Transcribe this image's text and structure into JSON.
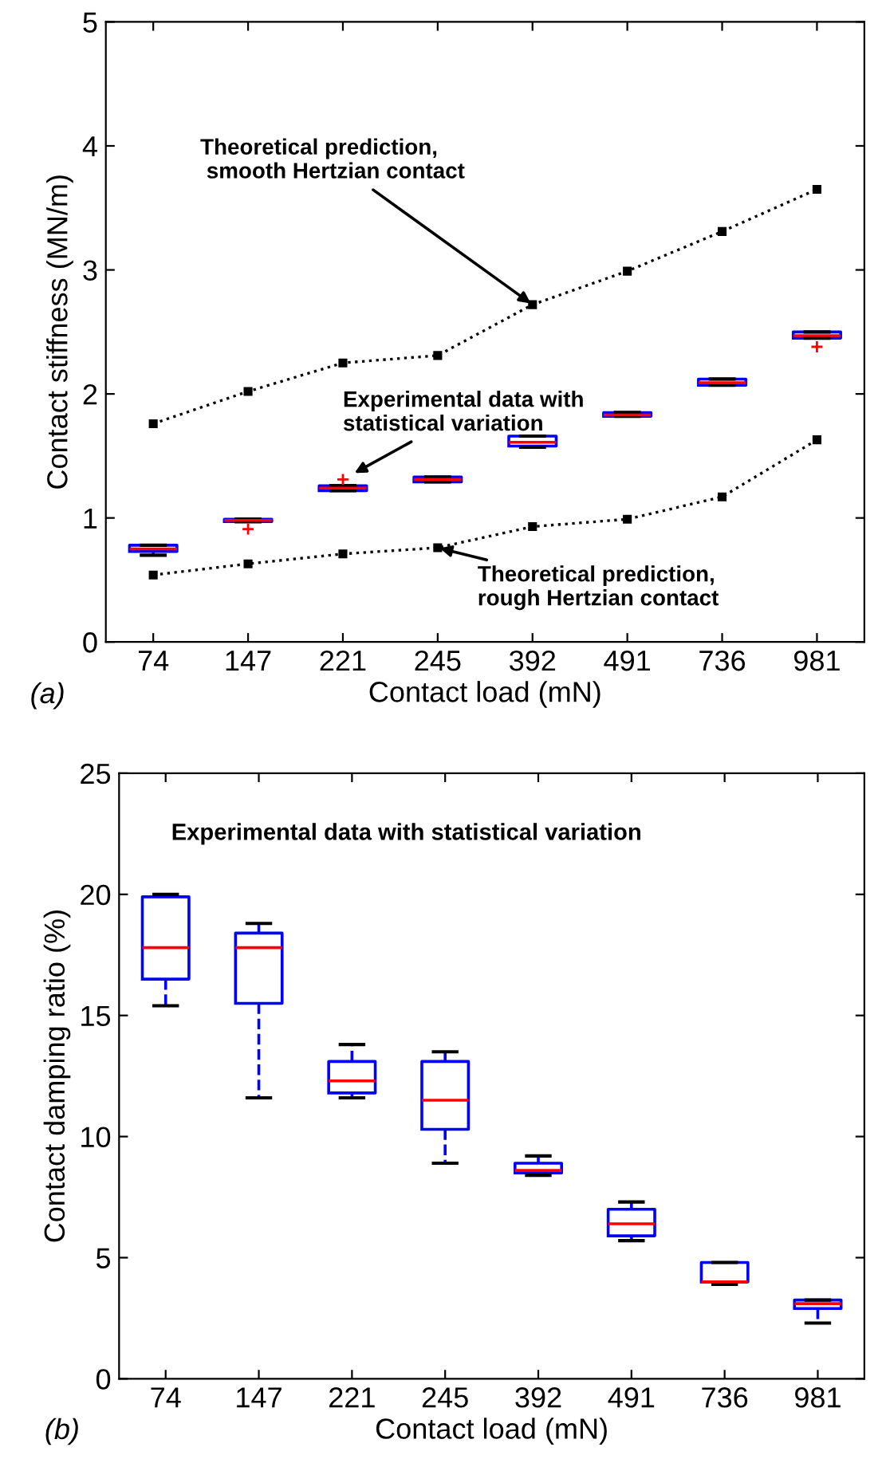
{
  "chart_data": [
    {
      "type": "line",
      "xlabel": "Contact load (mN)",
      "ylabel": "Contact stiffness (MN/m)",
      "categories": [
        "74",
        "147",
        "221",
        "245",
        "392",
        "491",
        "736",
        "981"
      ],
      "series": [
        {
          "color": "#000000",
          "values": [
            1.76,
            2.02,
            2.25,
            2.31,
            2.72,
            2.99,
            3.31,
            3.65
          ]
        },
        {
          "color": "#000000",
          "values": [
            0.54,
            0.63,
            0.71,
            0.76,
            0.93,
            0.99,
            1.17,
            1.63
          ]
        },
        {
          "type": "box",
          "color": "#0000ff",
          "boxes": [
            {
              "low": 0.7,
              "q1": 0.73,
              "median": 0.75,
              "q3": 0.78,
              "high": 0.78
            },
            {
              "low": 0.97,
              "q1": 0.97,
              "median": 0.98,
              "q3": 0.99,
              "high": 0.99,
              "outliers": [
                0.91
              ]
            },
            {
              "low": 1.22,
              "q1": 1.22,
              "median": 1.24,
              "q3": 1.26,
              "high": 1.26,
              "outliers": [
                1.31
              ]
            },
            {
              "low": 1.29,
              "q1": 1.29,
              "median": 1.31,
              "q3": 1.33,
              "high": 1.33
            },
            {
              "low": 1.57,
              "q1": 1.58,
              "median": 1.61,
              "q3": 1.66,
              "high": 1.66
            },
            {
              "low": 1.82,
              "q1": 1.82,
              "median": 1.83,
              "q3": 1.85,
              "high": 1.85
            },
            {
              "low": 2.07,
              "q1": 2.07,
              "median": 2.09,
              "q3": 2.12,
              "high": 2.12
            },
            {
              "low": 2.45,
              "q1": 2.45,
              "median": 2.47,
              "q3": 2.5,
              "high": 2.5,
              "outliers": [
                2.38
              ]
            }
          ]
        }
      ],
      "ylim": [
        0,
        5
      ],
      "yticks": [
        0,
        1,
        2,
        3,
        4,
        5
      ],
      "grid": false,
      "legend": false,
      "marker": "square",
      "line_style": "dotted",
      "annotations": [
        {
          "text": "Theoretical prediction,\n smooth Hertzian contact",
          "x": "392",
          "y": 2.72
        },
        {
          "text": "Experimental data with\nstatistical variation",
          "x": "221",
          "y": 1.31
        },
        {
          "text": "Theoretical prediction,\nrough Hertzian contact",
          "x": "245",
          "y": 0.76
        },
        "(a)"
      ]
    },
    {
      "type": "box",
      "xlabel": "Contact load (mN)",
      "ylabel": "Contact damping ratio (%)",
      "categories": [
        "74",
        "147",
        "221",
        "245",
        "392",
        "491",
        "736",
        "981"
      ],
      "series": [
        {
          "color": "#0000ff",
          "boxes": [
            {
              "low": 15.4,
              "q1": 16.5,
              "median": 17.8,
              "q3": 19.9,
              "high": 20.0
            },
            {
              "low": 11.6,
              "q1": 15.5,
              "median": 17.8,
              "q3": 18.4,
              "high": 18.8
            },
            {
              "low": 11.6,
              "q1": 11.8,
              "median": 12.3,
              "q3": 13.1,
              "high": 13.8
            },
            {
              "low": 8.9,
              "q1": 10.3,
              "median": 11.5,
              "q3": 13.1,
              "high": 13.5
            },
            {
              "low": 8.4,
              "q1": 8.5,
              "median": 8.6,
              "q3": 8.9,
              "high": 9.2
            },
            {
              "low": 5.7,
              "q1": 5.9,
              "median": 6.4,
              "q3": 7.0,
              "high": 7.3
            },
            {
              "low": 3.9,
              "q1": 4.0,
              "median": 4.0,
              "q3": 4.8,
              "high": 4.8
            },
            {
              "low": 2.3,
              "q1": 2.9,
              "median": 3.1,
              "q3": 3.25,
              "high": 3.25
            }
          ]
        }
      ],
      "ylim": [
        0,
        25
      ],
      "yticks": [
        0,
        5,
        10,
        15,
        20,
        25
      ],
      "grid": false,
      "legend": false,
      "annotations": [
        "Experimental data with statistical variation",
        "(b)"
      ]
    }
  ]
}
